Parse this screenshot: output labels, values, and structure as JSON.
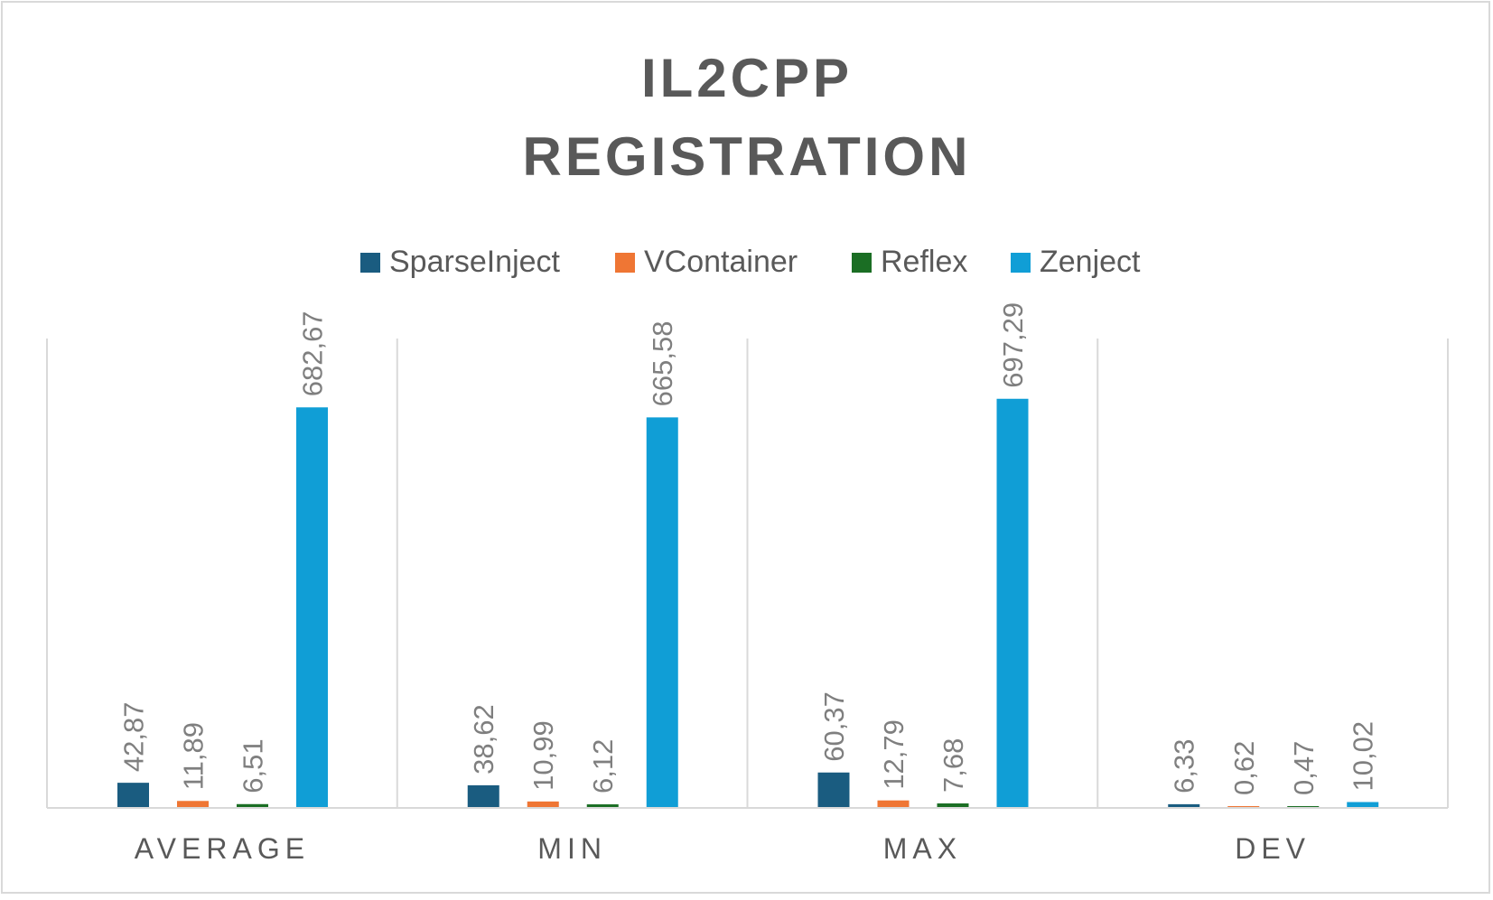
{
  "chart_data": {
    "type": "bar",
    "title_lines": [
      "IL2CPP",
      "REGISTRATION"
    ],
    "categories": [
      "AVERAGE",
      "MIN",
      "MAX",
      "DEV"
    ],
    "series": [
      {
        "name": "SparseInject",
        "color": "#1a5c80",
        "values": [
          42.87,
          38.62,
          60.37,
          6.33
        ],
        "labels": [
          "42,87",
          "38,62",
          "60,37",
          "6,33"
        ]
      },
      {
        "name": "VContainer",
        "color": "#ef7634",
        "values": [
          11.89,
          10.99,
          12.79,
          0.62
        ],
        "labels": [
          "11,89",
          "10,99",
          "12,79",
          "0,62"
        ]
      },
      {
        "name": "Reflex",
        "color": "#1b6e24",
        "values": [
          6.51,
          6.12,
          7.68,
          0.47
        ],
        "labels": [
          "6,51",
          "6,12",
          "7,68",
          "0,47"
        ]
      },
      {
        "name": "Zenject",
        "color": "#109ed6",
        "values": [
          682.67,
          665.58,
          697.29,
          10.02
        ],
        "labels": [
          "682,67",
          "665,58",
          "697,29",
          "10,02"
        ]
      }
    ],
    "ylim": [
      0,
      800
    ],
    "legend_position": "top",
    "grid": false,
    "text_color": "#595959",
    "label_color": "#7f7f7f",
    "axis_color": "#d9d9d9"
  }
}
